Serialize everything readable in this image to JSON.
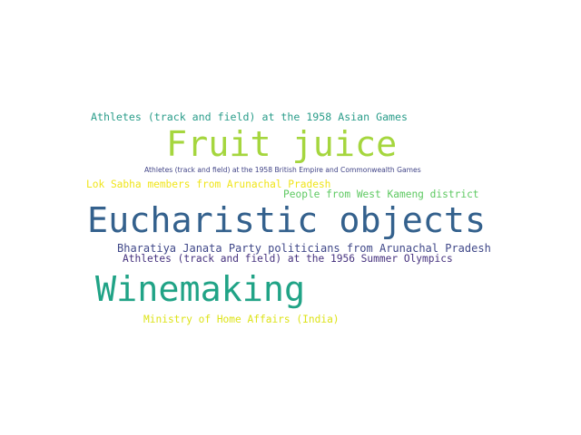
{
  "words": [
    {
      "text": "Athletes (track and field) at the 1958 Asian Games",
      "color": "#2a9d8a"
    },
    {
      "text": "Fruit juice",
      "color": "#a5d63e"
    },
    {
      "text": "Athletes (track and field) at the 1958 British Empire and Commonwealth Games",
      "color": "#414487"
    },
    {
      "text": "Lok Sabha members from Arunachal Pradesh",
      "color": "#f0e51a"
    },
    {
      "text": "People from West Kameng district",
      "color": "#5ec962"
    },
    {
      "text": "Eucharistic objects",
      "color": "#34618d"
    },
    {
      "text": "Bharatiya Janata Party politicians from Arunachal Pradesh",
      "color": "#3f4788"
    },
    {
      "text": "Athletes (track and field) at the 1956 Summer Olympics",
      "color": "#46327e"
    },
    {
      "text": "Winemaking",
      "color": "#20a386"
    },
    {
      "text": "Ministry of Home Affairs (India)",
      "color": "#dde318"
    }
  ]
}
